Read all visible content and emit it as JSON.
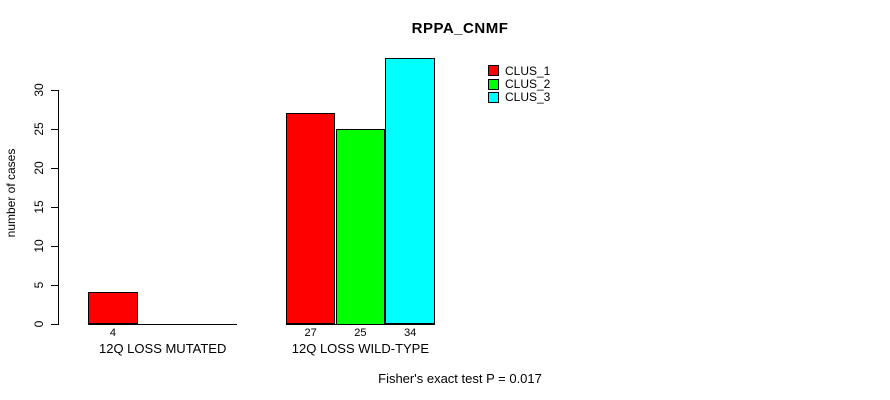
{
  "chart_data": {
    "type": "bar",
    "title": "RPPA_CNMF",
    "xlabel": "",
    "ylabel": "number of cases",
    "categories": [
      "12Q LOSS MUTATED",
      "12Q LOSS WILD-TYPE"
    ],
    "series": [
      {
        "name": "CLUS_1",
        "color": "#ff0000",
        "values": [
          4,
          27
        ]
      },
      {
        "name": "CLUS_2",
        "color": "#00ff00",
        "values": [
          0,
          25
        ]
      },
      {
        "name": "CLUS_3",
        "color": "#00ffff",
        "values": [
          0,
          34
        ]
      }
    ],
    "bar_value_labels": [
      "4",
      "27",
      "25",
      "34"
    ],
    "yticks": [
      0,
      5,
      10,
      15,
      20,
      25,
      30
    ],
    "ylim": [
      0,
      34
    ],
    "grid": false,
    "legend_position": "top-right",
    "legend_entries": [
      "CLUS_1",
      "CLUS_2",
      "CLUS_3"
    ],
    "annotation": "Fisher's exact test P = 0.017"
  },
  "colors": {
    "axis": "#000000",
    "text": "#000000",
    "background": "#ffffff"
  }
}
